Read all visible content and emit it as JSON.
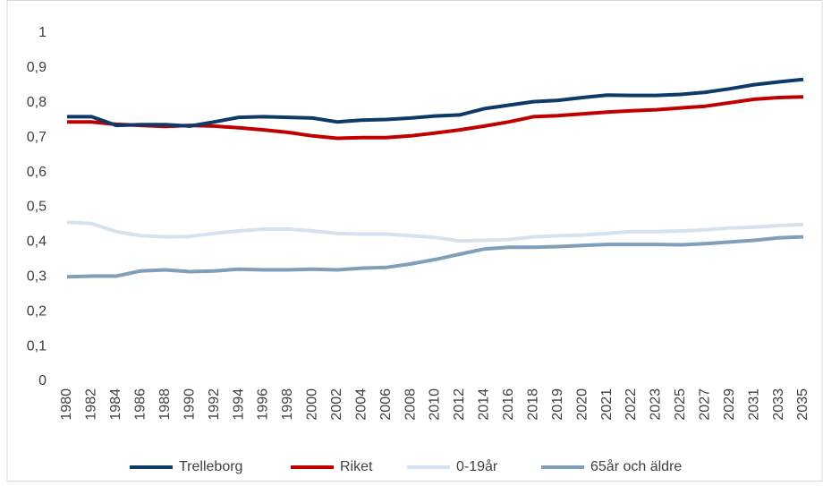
{
  "chart_data": {
    "type": "line",
    "categories": [
      "1980",
      "1982",
      "1984",
      "1986",
      "1988",
      "1990",
      "1992",
      "1994",
      "1996",
      "1998",
      "2000",
      "2002",
      "2004",
      "2006",
      "2008",
      "2010",
      "2012",
      "2014",
      "2016",
      "2018",
      "2019",
      "2020",
      "2021",
      "2022",
      "2023",
      "2025",
      "2027",
      "2029",
      "2031",
      "2033",
      "2035"
    ],
    "series": [
      {
        "name": "Trelleborg",
        "color": "#0f3a67",
        "values": [
          0.76,
          0.76,
          0.735,
          0.737,
          0.737,
          0.733,
          0.745,
          0.758,
          0.76,
          0.758,
          0.756,
          0.745,
          0.75,
          0.752,
          0.756,
          0.762,
          0.765,
          0.783,
          0.793,
          0.803,
          0.807,
          0.815,
          0.822,
          0.821,
          0.821,
          0.824,
          0.83,
          0.84,
          0.852,
          0.86,
          0.867
        ]
      },
      {
        "name": "Riket",
        "color": "#c00000",
        "values": [
          0.745,
          0.745,
          0.738,
          0.735,
          0.732,
          0.735,
          0.733,
          0.728,
          0.722,
          0.715,
          0.705,
          0.698,
          0.7,
          0.7,
          0.705,
          0.713,
          0.722,
          0.733,
          0.745,
          0.76,
          0.763,
          0.768,
          0.773,
          0.777,
          0.78,
          0.785,
          0.79,
          0.8,
          0.81,
          0.815,
          0.817
        ]
      },
      {
        "name": "0-19år",
        "color": "#d6e3ef",
        "values": [
          0.457,
          0.453,
          0.43,
          0.418,
          0.415,
          0.416,
          0.425,
          0.432,
          0.437,
          0.437,
          0.432,
          0.425,
          0.423,
          0.423,
          0.418,
          0.413,
          0.403,
          0.405,
          0.407,
          0.415,
          0.418,
          0.42,
          0.425,
          0.43,
          0.43,
          0.432,
          0.435,
          0.44,
          0.443,
          0.447,
          0.45
        ]
      },
      {
        "name": "65år och äldre",
        "color": "#7f9fba",
        "values": [
          0.3,
          0.302,
          0.302,
          0.317,
          0.32,
          0.315,
          0.317,
          0.322,
          0.32,
          0.32,
          0.322,
          0.32,
          0.325,
          0.327,
          0.337,
          0.35,
          0.365,
          0.38,
          0.385,
          0.385,
          0.387,
          0.39,
          0.393,
          0.393,
          0.393,
          0.392,
          0.395,
          0.4,
          0.405,
          0.412,
          0.415
        ]
      }
    ],
    "ylim": [
      0,
      1
    ],
    "yticks": [
      0,
      {
        "value": 0.1,
        "label": "0,1"
      },
      {
        "value": 0.2,
        "label": "0,2"
      },
      {
        "value": 0.3,
        "label": "0,3"
      },
      {
        "value": 0.4,
        "label": "0,4"
      },
      {
        "value": 0.5,
        "label": "0,5"
      },
      {
        "value": 0.6,
        "label": "0,6"
      },
      {
        "value": 0.7,
        "label": "0,7"
      },
      {
        "value": 0.8,
        "label": "0,8"
      },
      {
        "value": 0.9,
        "label": "0,9"
      },
      1
    ],
    "grid": false,
    "legend": "bottom"
  }
}
